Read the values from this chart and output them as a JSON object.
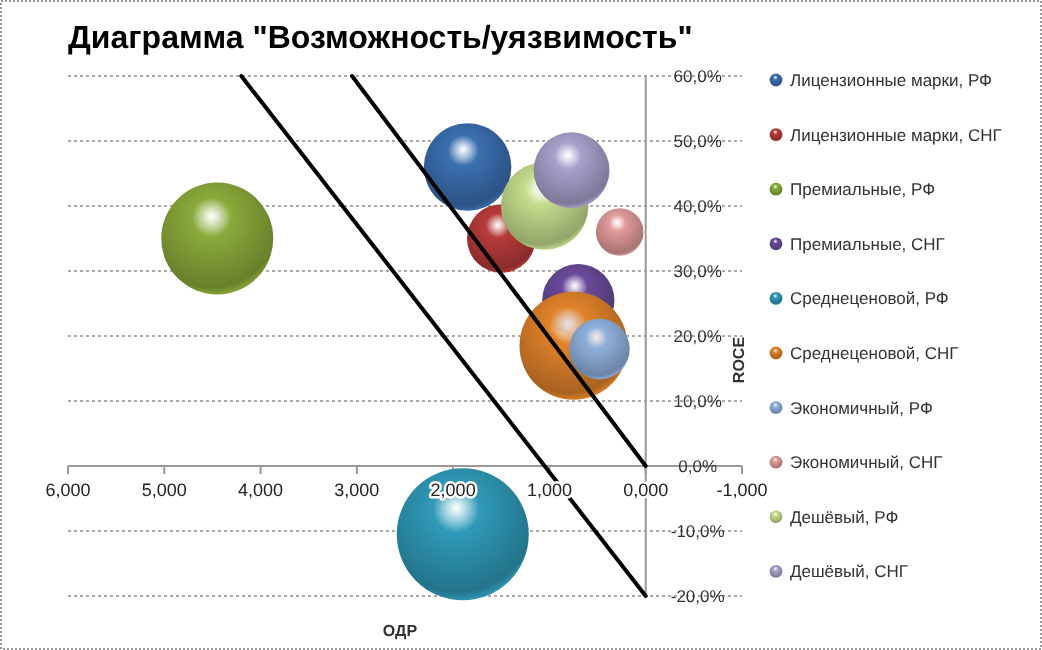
{
  "chart_data": {
    "type": "bubble",
    "title": "Диаграмма \"Возможность/уязвимость\"",
    "xlabel": "ОДР",
    "ylabel": "ROCE",
    "xlim": [
      6,
      -1
    ],
    "xticks": [
      {
        "value": 6,
        "label": "6,000"
      },
      {
        "value": 5,
        "label": "5,000"
      },
      {
        "value": 4,
        "label": "4,000"
      },
      {
        "value": 3,
        "label": "3,000"
      },
      {
        "value": 2,
        "label": "2,000"
      },
      {
        "value": 1,
        "label": "1,000"
      },
      {
        "value": 0,
        "label": "0,000"
      },
      {
        "value": -1,
        "label": "-1,000"
      }
    ],
    "ylim": [
      -20,
      60
    ],
    "yticks": [
      {
        "value": -20,
        "label": "-20,0%"
      },
      {
        "value": -10,
        "label": "-10,0%"
      },
      {
        "value": 0,
        "label": "0,0%"
      },
      {
        "value": 10,
        "label": "10,0%"
      },
      {
        "value": 20,
        "label": "20,0%"
      },
      {
        "value": 30,
        "label": "30,0%"
      },
      {
        "value": 40,
        "label": "40,0%"
      },
      {
        "value": 50,
        "label": "50,0%"
      },
      {
        "value": 60,
        "label": "60,0%"
      }
    ],
    "grid": "y",
    "legend": "right",
    "series": [
      {
        "name": "Лицензионные марки, РФ",
        "color": "#3b6fb0",
        "x": [
          1.85
        ],
        "values": [
          46
        ],
        "sizes": [
          0.44
        ]
      },
      {
        "name": "Лицензионные марки, СНГ",
        "color": "#b83a3a",
        "x": [
          1.5
        ],
        "values": [
          35
        ],
        "sizes": [
          0.27
        ]
      },
      {
        "name": "Премиальные, РФ",
        "color": "#8aaa3a",
        "x": [
          4.45
        ],
        "values": [
          35
        ],
        "sizes": [
          0.72
        ]
      },
      {
        "name": "Премиальные, СНГ",
        "color": "#6a4a9a",
        "x": [
          0.7
        ],
        "values": [
          25.5
        ],
        "sizes": [
          0.3
        ]
      },
      {
        "name": "Среднеценовой, РФ",
        "color": "#2f9ab8",
        "x": [
          1.9
        ],
        "values": [
          -10.5
        ],
        "sizes": [
          1
        ]
      },
      {
        "name": "Среднеценовой, СНГ",
        "color": "#e0822a",
        "x": [
          0.75
        ],
        "values": [
          18.5
        ],
        "sizes": [
          0.67
        ]
      },
      {
        "name": "Экономичный, РФ",
        "color": "#8fb0dc",
        "x": [
          0.48
        ],
        "values": [
          18
        ],
        "sizes": [
          0.21
        ]
      },
      {
        "name": "Экономичный, СНГ",
        "color": "#e09a9a",
        "x": [
          0.27
        ],
        "values": [
          36
        ],
        "sizes": [
          0.13
        ]
      },
      {
        "name": "Дешёвый, РФ",
        "color": "#c4dc8c",
        "x": [
          1.05
        ],
        "values": [
          40
        ],
        "sizes": [
          0.44
        ]
      },
      {
        "name": "Дешёвый, СНГ",
        "color": "#a8a0cc",
        "x": [
          0.77
        ],
        "values": [
          45.5
        ],
        "sizes": [
          0.33
        ]
      },
      {
        "type": "line",
        "color": "#000000",
        "x": [
          4.2,
          0
        ],
        "values": [
          60,
          -20
        ]
      },
      {
        "type": "line",
        "color": "#000000",
        "x": [
          3.05,
          0
        ],
        "values": [
          60,
          0
        ]
      }
    ]
  }
}
